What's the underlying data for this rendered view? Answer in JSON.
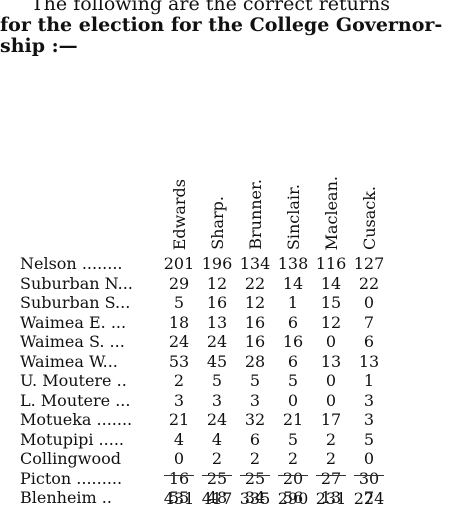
{
  "intro": {
    "line1": "The following are the correct returns",
    "line2": "for the election for the College Governor-",
    "line3": "ship :—"
  },
  "table": {
    "candidates": [
      "Edwards",
      "Sharp.",
      "Brunner.",
      "Sinclair.",
      "Maclean.",
      "Cusack."
    ],
    "rows": [
      {
        "place": "Nelson ........",
        "values": [
          "201",
          "196",
          "134",
          "138",
          "116",
          "127"
        ]
      },
      {
        "place": "Suburban N...",
        "values": [
          "29",
          "12",
          "22",
          "14",
          "14",
          "22"
        ]
      },
      {
        "place": "Suburban S...",
        "values": [
          "5",
          "16",
          "12",
          "1",
          "15",
          "0"
        ]
      },
      {
        "place": "Waimea E. ...",
        "values": [
          "18",
          "13",
          "16",
          "6",
          "12",
          "7"
        ]
      },
      {
        "place": "Waimea S. ...",
        "values": [
          "24",
          "24",
          "16",
          "16",
          "0",
          "6"
        ]
      },
      {
        "place": "Waimea W...",
        "values": [
          "53",
          "45",
          "28",
          "6",
          "13",
          "13"
        ]
      },
      {
        "place": "U. Moutere ..",
        "values": [
          "2",
          "5",
          "5",
          "5",
          "0",
          "1"
        ]
      },
      {
        "place": "L. Moutere ...",
        "values": [
          "3",
          "3",
          "3",
          "0",
          "0",
          "3"
        ]
      },
      {
        "place": "Motueka .......",
        "values": [
          "21",
          "24",
          "32",
          "21",
          "17",
          "3"
        ]
      },
      {
        "place": "Motupipi .....",
        "values": [
          "4",
          "4",
          "6",
          "5",
          "2",
          "5"
        ]
      },
      {
        "place": "Collingwood",
        "values": [
          "0",
          "2",
          "2",
          "2",
          "2",
          "0"
        ]
      },
      {
        "place": "Picton .........",
        "values": [
          "16",
          "25",
          "25",
          "20",
          "27",
          "30"
        ]
      },
      {
        "place": "Blenheim ..",
        "values": [
          "55",
          "48",
          "34",
          "56",
          "13",
          "7"
        ]
      }
    ],
    "totals": [
      "431",
      "417",
      "335",
      "290",
      "231",
      "224"
    ]
  }
}
